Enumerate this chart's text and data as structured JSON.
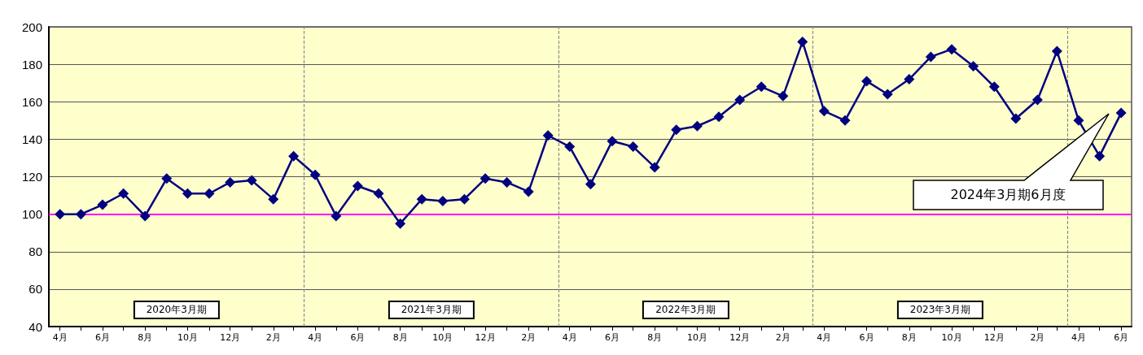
{
  "chart_data": {
    "type": "line",
    "x": [
      "2019-04",
      "2019-05",
      "2019-06",
      "2019-07",
      "2019-08",
      "2019-09",
      "2019-10",
      "2019-11",
      "2019-12",
      "2020-01",
      "2020-02",
      "2020-03",
      "2020-04",
      "2020-05",
      "2020-06",
      "2020-07",
      "2020-08",
      "2020-09",
      "2020-10",
      "2020-11",
      "2020-12",
      "2021-01",
      "2021-02",
      "2021-03",
      "2021-04",
      "2021-05",
      "2021-06",
      "2021-07",
      "2021-08",
      "2021-09",
      "2021-10",
      "2021-11",
      "2021-12",
      "2022-01",
      "2022-02",
      "2022-03",
      "2022-04",
      "2022-05",
      "2022-06",
      "2022-07",
      "2022-08",
      "2022-09",
      "2022-10",
      "2022-11",
      "2022-12",
      "2023-01",
      "2023-02",
      "2023-03",
      "2023-04",
      "2023-05",
      "2023-06"
    ],
    "series": [
      {
        "color": "#000080",
        "values": [
          100,
          100,
          105,
          111,
          99,
          119,
          111,
          111,
          117,
          118,
          108,
          131,
          121,
          99,
          115,
          111,
          95,
          108,
          107,
          108,
          119,
          117,
          112,
          142,
          136,
          116,
          139,
          136,
          125,
          145,
          147,
          152,
          161,
          168,
          163,
          192,
          155,
          150,
          171,
          164,
          172,
          184,
          188,
          179,
          168,
          151,
          161,
          187,
          150,
          131,
          154
        ]
      }
    ],
    "xlim": [
      "2019-03-16",
      "2023-06-16"
    ],
    "xticks": [
      {
        "value": "2019-04",
        "label": "4月"
      },
      {
        "value": "2019-05",
        "label": null
      },
      {
        "value": "2019-06",
        "label": "6月"
      },
      {
        "value": "2019-07",
        "label": null
      },
      {
        "value": "2019-08",
        "label": "8月"
      },
      {
        "value": "2019-09",
        "label": null
      },
      {
        "value": "2019-10",
        "label": "10月"
      },
      {
        "value": "2019-11",
        "label": null
      },
      {
        "value": "2019-12",
        "label": "12月"
      },
      {
        "value": "2020-01",
        "label": null
      },
      {
        "value": "2020-02",
        "label": "2月"
      },
      {
        "value": "2020-03",
        "label": null
      },
      {
        "value": "2020-04",
        "label": "4月"
      },
      {
        "value": "2020-05",
        "label": null
      },
      {
        "value": "2020-06",
        "label": "6月"
      },
      {
        "value": "2020-07",
        "label": null
      },
      {
        "value": "2020-08",
        "label": "8月"
      },
      {
        "value": "2020-09",
        "label": null
      },
      {
        "value": "2020-10",
        "label": "10月"
      },
      {
        "value": "2020-11",
        "label": null
      },
      {
        "value": "2020-12",
        "label": "12月"
      },
      {
        "value": "2021-01",
        "label": null
      },
      {
        "value": "2021-02",
        "label": "2月"
      },
      {
        "value": "2021-03",
        "label": null
      },
      {
        "value": "2021-04",
        "label": "4月"
      },
      {
        "value": "2021-05",
        "label": null
      },
      {
        "value": "2021-06",
        "label": "6月"
      },
      {
        "value": "2021-07",
        "label": null
      },
      {
        "value": "2021-08",
        "label": "8月"
      },
      {
        "value": "2021-09",
        "label": null
      },
      {
        "value": "2021-10",
        "label": "10月"
      },
      {
        "value": "2021-11",
        "label": null
      },
      {
        "value": "2021-12",
        "label": "12月"
      },
      {
        "value": "2022-01",
        "label": null
      },
      {
        "value": "2022-02",
        "label": "2月"
      },
      {
        "value": "2022-03",
        "label": null
      },
      {
        "value": "2022-04",
        "label": "4月"
      },
      {
        "value": "2022-05",
        "label": null
      },
      {
        "value": "2022-06",
        "label": "6月"
      },
      {
        "value": "2022-07",
        "label": null
      },
      {
        "value": "2022-08",
        "label": "8月"
      },
      {
        "value": "2022-09",
        "label": null
      },
      {
        "value": "2022-10",
        "label": "10月"
      },
      {
        "value": "2022-11",
        "label": null
      },
      {
        "value": "2022-12",
        "label": "12月"
      },
      {
        "value": "2023-01",
        "label": null
      },
      {
        "value": "2023-02",
        "label": "2月"
      },
      {
        "value": "2023-03",
        "label": null
      },
      {
        "value": "2023-04",
        "label": "4月"
      },
      {
        "value": "2023-05",
        "label": null
      },
      {
        "value": "2023-06",
        "label": "6月"
      }
    ],
    "ylim": [
      40,
      200
    ],
    "yticks": [
      40,
      60,
      80,
      100,
      120,
      140,
      160,
      180,
      200
    ],
    "grid": "y",
    "marker": "diamond",
    "line_style": "solid",
    "ref_lines": [
      {
        "axis": "y",
        "value": 100,
        "color": "#ff00ff",
        "line_style": "solid"
      },
      {
        "axis": "x",
        "value": "2020-03-16",
        "color": "#808080",
        "line_style": "dashed"
      },
      {
        "axis": "x",
        "value": "2021-03-16",
        "color": "#808080",
        "line_style": "dashed"
      },
      {
        "axis": "x",
        "value": "2022-03-16",
        "color": "#808080",
        "line_style": "dashed"
      },
      {
        "axis": "x",
        "value": "2023-03-16",
        "color": "#808080",
        "line_style": "dashed"
      }
    ],
    "annotations": [
      "2020年3月期",
      "2021年3月期",
      "2022年3月期",
      "2023年3月期",
      "2024年3月期6月度"
    ]
  }
}
